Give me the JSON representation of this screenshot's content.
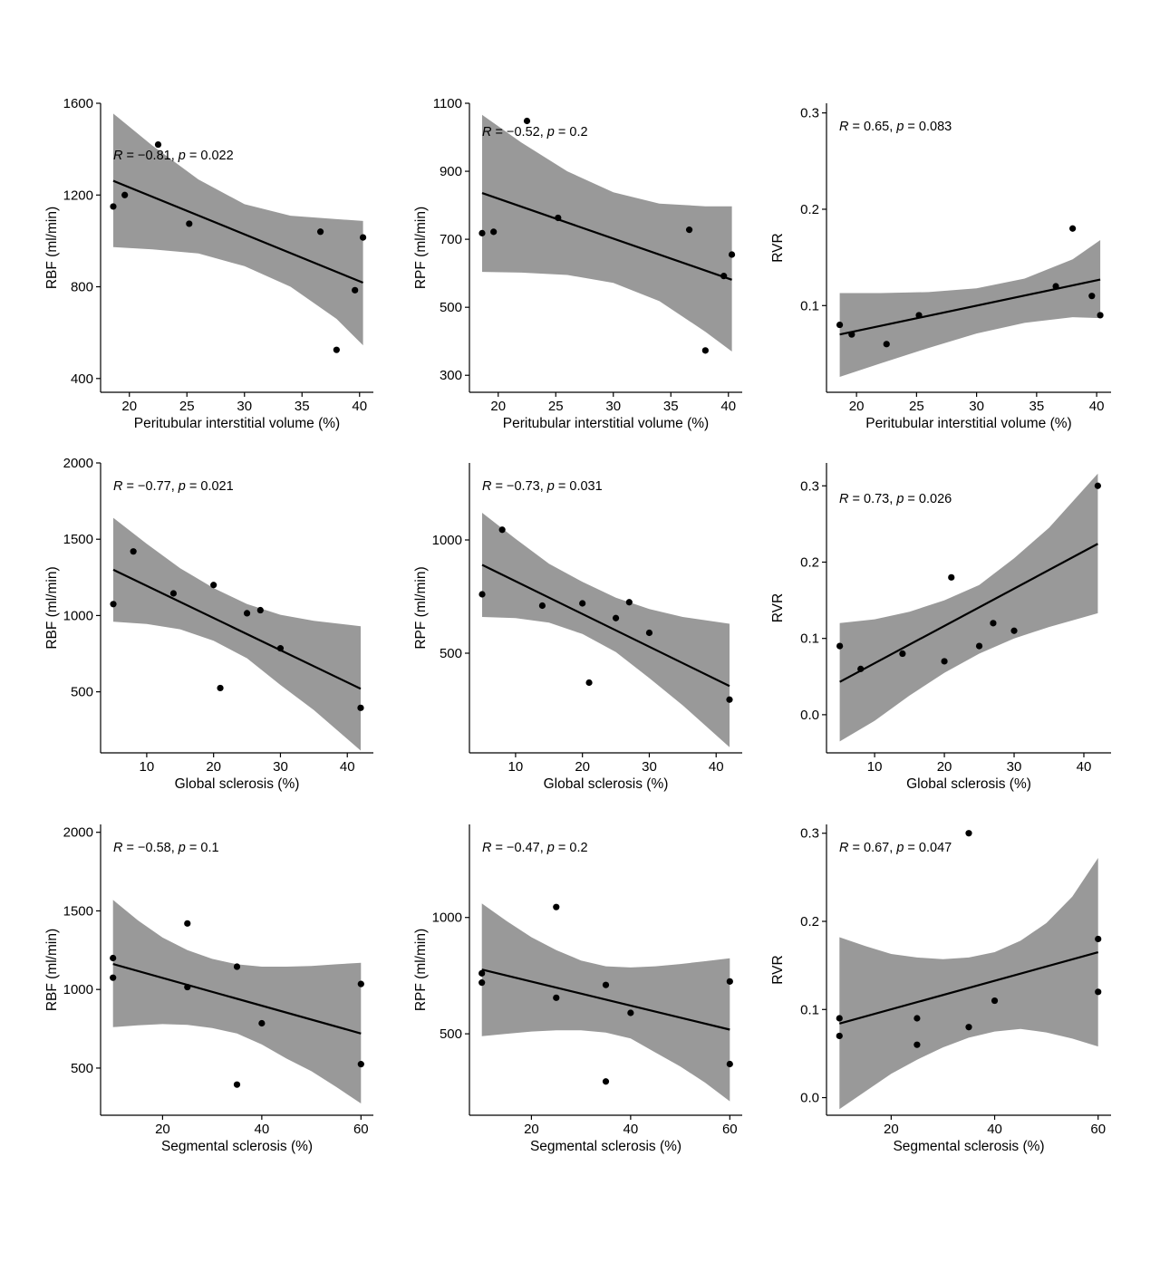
{
  "chart_data": [
    {
      "id": "p1",
      "type": "scatter",
      "xlabel": "Peritubular interstitial volume (%)",
      "ylabel": "RBF (ml/min)",
      "xlim": [
        17.5,
        41.2
      ],
      "ylim": [
        340,
        1600
      ],
      "xticks": [
        20,
        25,
        30,
        35,
        40
      ],
      "yticks": [
        400,
        800,
        1200,
        1600
      ],
      "annotation": {
        "r": "−0.81",
        "p": "0.022",
        "position": "top-left"
      },
      "points": [
        [
          18.6,
          1150
        ],
        [
          19.6,
          1200
        ],
        [
          22.5,
          1420
        ],
        [
          25.2,
          1075
        ],
        [
          36.6,
          1040
        ],
        [
          38.0,
          525
        ],
        [
          39.6,
          785
        ],
        [
          40.3,
          1015
        ]
      ],
      "fit": {
        "x": [
          18.6,
          40.3
        ],
        "y": [
          1262,
          818
        ]
      },
      "ci": {
        "x": [
          18.6,
          22,
          26,
          30,
          34,
          38,
          40.3
        ],
        "upper": [
          1555,
          1415,
          1268,
          1160,
          1110,
          1095,
          1087
        ],
        "lower": [
          973,
          963,
          945,
          890,
          800,
          660,
          545
        ]
      }
    },
    {
      "id": "p2",
      "type": "scatter",
      "xlabel": "Peritubular interstitial volume (%)",
      "ylabel": "RPF (ml/min)",
      "xlim": [
        17.5,
        41.2
      ],
      "ylim": [
        250,
        1100
      ],
      "xticks": [
        20,
        25,
        30,
        35,
        40
      ],
      "yticks": [
        300,
        500,
        700,
        900,
        1100
      ],
      "annotation": {
        "r": "−0.52",
        "p": "0.2",
        "position": "top-left"
      },
      "points": [
        [
          18.6,
          718
        ],
        [
          19.6,
          722
        ],
        [
          22.5,
          1048
        ],
        [
          25.2,
          763
        ],
        [
          36.6,
          728
        ],
        [
          38.0,
          373
        ],
        [
          39.6,
          592
        ],
        [
          40.3,
          655
        ]
      ],
      "fit": {
        "x": [
          18.6,
          40.3
        ],
        "y": [
          836,
          581
        ]
      },
      "ci": {
        "x": [
          18.6,
          22,
          26,
          30,
          34,
          38,
          40.3
        ],
        "upper": [
          1066,
          985,
          900,
          838,
          805,
          797,
          797
        ],
        "lower": [
          604,
          602,
          595,
          572,
          518,
          428,
          370
        ]
      }
    },
    {
      "id": "p3",
      "type": "scatter",
      "xlabel": "Peritubular interstitial volume (%)",
      "ylabel": "RVR",
      "xlim": [
        17.5,
        41.2
      ],
      "ylim": [
        0.01,
        0.31
      ],
      "xticks": [
        20,
        25,
        30,
        35,
        40
      ],
      "yticks": [
        0.1,
        0.2,
        0.3
      ],
      "annotation": {
        "r": "0.65",
        "p": "0.083",
        "position": "top-left"
      },
      "points": [
        [
          18.6,
          0.08
        ],
        [
          19.6,
          0.07
        ],
        [
          22.5,
          0.06
        ],
        [
          25.2,
          0.09
        ],
        [
          36.6,
          0.12
        ],
        [
          38.0,
          0.18
        ],
        [
          39.6,
          0.11
        ],
        [
          40.3,
          0.09
        ]
      ],
      "fit": {
        "x": [
          18.6,
          40.3
        ],
        "y": [
          0.07,
          0.127
        ]
      },
      "ci": {
        "x": [
          18.6,
          22,
          26,
          30,
          34,
          38,
          40.3
        ],
        "upper": [
          0.113,
          0.113,
          0.114,
          0.118,
          0.128,
          0.148,
          0.168
        ],
        "lower": [
          0.026,
          0.04,
          0.056,
          0.071,
          0.082,
          0.088,
          0.087
        ]
      }
    },
    {
      "id": "p4",
      "type": "scatter",
      "xlabel": "Global sclerosis (%)",
      "ylabel": "RBF (ml/min)",
      "xlim": [
        3.1,
        43.9
      ],
      "ylim": [
        100,
        2000
      ],
      "xticks": [
        10,
        20,
        30,
        40
      ],
      "yticks": [
        500,
        1000,
        1500,
        2000
      ],
      "annotation": {
        "r": "−0.77",
        "p": "0.021",
        "position": "top-left"
      },
      "points": [
        [
          5,
          1075
        ],
        [
          8,
          1420
        ],
        [
          14,
          1145
        ],
        [
          20,
          1200
        ],
        [
          21,
          525
        ],
        [
          25,
          1015
        ],
        [
          27,
          1035
        ],
        [
          30,
          785
        ],
        [
          42,
          395
        ]
      ],
      "fit": {
        "x": [
          5,
          42
        ],
        "y": [
          1300,
          520
        ]
      },
      "ci": {
        "x": [
          5,
          10,
          15,
          20,
          25,
          30,
          35,
          42
        ],
        "upper": [
          1640,
          1470,
          1310,
          1180,
          1075,
          1005,
          965,
          930
        ],
        "lower": [
          960,
          945,
          910,
          835,
          720,
          545,
          380,
          115
        ]
      }
    },
    {
      "id": "p5",
      "type": "scatter",
      "xlabel": "Global sclerosis (%)",
      "ylabel": "RPF (ml/min)",
      "xlim": [
        3.1,
        43.9
      ],
      "ylim": [
        60,
        1340
      ],
      "xticks": [
        10,
        20,
        30,
        40
      ],
      "yticks": [
        500,
        1000
      ],
      "annotation": {
        "r": "−0.73",
        "p": "0.031",
        "position": "top-left"
      },
      "points": [
        [
          5,
          760
        ],
        [
          8,
          1045
        ],
        [
          14,
          710
        ],
        [
          20,
          720
        ],
        [
          21,
          370
        ],
        [
          25,
          655
        ],
        [
          27,
          725
        ],
        [
          30,
          590
        ],
        [
          42,
          295
        ]
      ],
      "fit": {
        "x": [
          5,
          42
        ],
        "y": [
          890,
          355
        ]
      },
      "ci": {
        "x": [
          5,
          10,
          15,
          20,
          25,
          30,
          35,
          42
        ],
        "upper": [
          1120,
          1005,
          895,
          815,
          745,
          695,
          660,
          630
        ],
        "lower": [
          660,
          655,
          635,
          585,
          505,
          390,
          270,
          85
        ]
      }
    },
    {
      "id": "p6",
      "type": "scatter",
      "xlabel": "Global sclerosis (%)",
      "ylabel": "RVR",
      "xlim": [
        3.1,
        43.9
      ],
      "ylim": [
        -0.05,
        0.33
      ],
      "xticks": [
        10,
        20,
        30,
        40
      ],
      "yticks": [
        0.0,
        0.1,
        0.2,
        0.3
      ],
      "annotation": {
        "r": "0.73",
        "p": "0.026",
        "position": "top-left"
      },
      "points": [
        [
          5,
          0.09
        ],
        [
          8,
          0.06
        ],
        [
          14,
          0.08
        ],
        [
          20,
          0.07
        ],
        [
          21,
          0.18
        ],
        [
          25,
          0.09
        ],
        [
          27,
          0.12
        ],
        [
          30,
          0.11
        ],
        [
          42,
          0.3
        ]
      ],
      "fit": {
        "x": [
          5,
          42
        ],
        "y": [
          0.043,
          0.224
        ]
      },
      "ci": {
        "x": [
          5,
          10,
          15,
          20,
          25,
          30,
          35,
          42
        ],
        "upper": [
          0.12,
          0.125,
          0.135,
          0.15,
          0.17,
          0.205,
          0.245,
          0.316
        ],
        "lower": [
          -0.035,
          -0.008,
          0.025,
          0.055,
          0.08,
          0.1,
          0.115,
          0.133
        ]
      }
    },
    {
      "id": "p7",
      "type": "scatter",
      "xlabel": "Segmental sclerosis (%)",
      "ylabel": "RBF (ml/min)",
      "xlim": [
        7.5,
        62.5
      ],
      "ylim": [
        200,
        2050
      ],
      "xticks": [
        20,
        40,
        60
      ],
      "yticks": [
        500,
        1000,
        1500,
        2000
      ],
      "annotation": {
        "r": "−0.58",
        "p": "0.1",
        "position": "top-left"
      },
      "points": [
        [
          10,
          1200
        ],
        [
          10,
          1075
        ],
        [
          25,
          1420
        ],
        [
          25,
          1015
        ],
        [
          35,
          1145
        ],
        [
          35,
          395
        ],
        [
          40,
          785
        ],
        [
          60,
          1035
        ],
        [
          60,
          525
        ]
      ],
      "fit": {
        "x": [
          10,
          60
        ],
        "y": [
          1162,
          720
        ]
      },
      "ci": {
        "x": [
          10,
          15,
          20,
          25,
          30,
          35,
          40,
          45,
          50,
          55,
          60
        ],
        "upper": [
          1570,
          1440,
          1330,
          1250,
          1195,
          1160,
          1145,
          1145,
          1150,
          1160,
          1170
        ],
        "lower": [
          760,
          772,
          780,
          775,
          755,
          720,
          650,
          560,
          480,
          380,
          275
        ]
      }
    },
    {
      "id": "p8",
      "type": "scatter",
      "xlabel": "Segmental sclerosis (%)",
      "ylabel": "RPF (ml/min)",
      "xlim": [
        7.5,
        62.5
      ],
      "ylim": [
        150,
        1400
      ],
      "xticks": [
        20,
        40,
        60
      ],
      "yticks": [
        500,
        1000
      ],
      "annotation": {
        "r": "−0.47",
        "p": "0.2",
        "position": "top-left"
      },
      "points": [
        [
          10,
          760
        ],
        [
          10,
          720
        ],
        [
          25,
          1045
        ],
        [
          25,
          655
        ],
        [
          35,
          710
        ],
        [
          35,
          295
        ],
        [
          40,
          590
        ],
        [
          60,
          725
        ],
        [
          60,
          370
        ]
      ],
      "fit": {
        "x": [
          10,
          60
        ],
        "y": [
          776,
          518
        ]
      },
      "ci": {
        "x": [
          10,
          15,
          20,
          25,
          30,
          35,
          40,
          45,
          50,
          55,
          60
        ],
        "upper": [
          1060,
          985,
          915,
          860,
          815,
          790,
          785,
          790,
          800,
          812,
          825
        ],
        "lower": [
          490,
          500,
          510,
          515,
          515,
          505,
          480,
          420,
          360,
          290,
          210
        ]
      }
    },
    {
      "id": "p9",
      "type": "scatter",
      "xlabel": "Segmental sclerosis (%)",
      "ylabel": "RVR",
      "xlim": [
        7.5,
        62.5
      ],
      "ylim": [
        -0.02,
        0.31
      ],
      "xticks": [
        20,
        40,
        60
      ],
      "yticks": [
        0.0,
        0.1,
        0.2,
        0.3
      ],
      "annotation": {
        "r": "0.67",
        "p": "0.047",
        "position": "top-left"
      },
      "points": [
        [
          10,
          0.09
        ],
        [
          10,
          0.07
        ],
        [
          25,
          0.09
        ],
        [
          25,
          0.06
        ],
        [
          35,
          0.08
        ],
        [
          35,
          0.3
        ],
        [
          40,
          0.11
        ],
        [
          60,
          0.18
        ],
        [
          60,
          0.12
        ]
      ],
      "fit": {
        "x": [
          10,
          60
        ],
        "y": [
          0.084,
          0.165
        ]
      },
      "ci": {
        "x": [
          10,
          15,
          20,
          25,
          30,
          35,
          40,
          45,
          50,
          55,
          60
        ],
        "upper": [
          0.182,
          0.172,
          0.163,
          0.159,
          0.157,
          0.159,
          0.165,
          0.178,
          0.198,
          0.228,
          0.272
        ],
        "lower": [
          -0.013,
          0.007,
          0.027,
          0.043,
          0.057,
          0.068,
          0.075,
          0.078,
          0.074,
          0.067,
          0.058
        ]
      }
    }
  ]
}
